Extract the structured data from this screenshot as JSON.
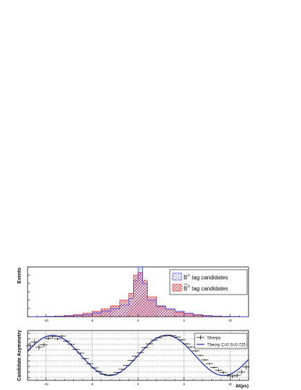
{
  "chart_data": [
    {
      "type": "histogram",
      "ylabel": "Events",
      "xlim": [
        -12,
        12
      ],
      "ylim": [
        0,
        3000
      ],
      "xticks": [
        "-10",
        "-5",
        "0",
        "5",
        "10"
      ],
      "bin_edges": [
        -12,
        -11,
        -10,
        -9,
        -8,
        -7,
        -6,
        -5,
        -4,
        -3,
        -2,
        -1,
        -0.5,
        0,
        0.5,
        1,
        2,
        3,
        4,
        5,
        6,
        7,
        8,
        9,
        10,
        11,
        12
      ],
      "series": [
        {
          "name": "B^{0} tag candidates",
          "color": "#2233ee",
          "hatch": "forward",
          "values": [
            4,
            8,
            14,
            25,
            45,
            80,
            130,
            220,
            340,
            480,
            700,
            1100,
            2200,
            3000,
            2000,
            1000,
            650,
            470,
            330,
            210,
            120,
            70,
            40,
            22,
            12,
            6
          ]
        },
        {
          "name": "B̄^{0} tag candidates",
          "color": "#ee2222",
          "hatch": "cross",
          "values": [
            6,
            12,
            22,
            38,
            70,
            125,
            210,
            330,
            470,
            650,
            1000,
            1400,
            2500,
            2650,
            2200,
            1200,
            620,
            420,
            280,
            175,
            100,
            58,
            32,
            18,
            9,
            5
          ]
        }
      ],
      "legend": [
        {
          "label": "tag candidates",
          "symbol": "B",
          "superscript": "0",
          "bar": false
        },
        {
          "label": "tag candidates",
          "symbol": "B",
          "superscript": "0",
          "bar": true
        }
      ],
      "legend_position": "top-right"
    },
    {
      "type": "line",
      "ylabel": "Candidate Asymmetry",
      "xlabel": "Δt(ps)",
      "xlim": [
        -12,
        12
      ],
      "ylim": [
        -0.9,
        0.9
      ],
      "grid": true,
      "xticks": [
        "-10",
        "-5",
        "0",
        "5",
        "10"
      ],
      "legend": [
        "Sherpa",
        "Theory C=0 S=0.725"
      ],
      "legend_position": "top-right",
      "theory": {
        "S": 0.725,
        "C": 0,
        "delta_m": 0.507
      },
      "series": [
        {
          "name": "Sherpa",
          "style": "markers",
          "x": [
            -11.75,
            -11.25,
            -10.75,
            -10.25,
            -9.75,
            -9.25,
            -8.75,
            -8.25,
            -7.75,
            -7.25,
            -6.75,
            -6.25,
            -5.75,
            -5.25,
            -4.75,
            -4.25,
            -3.75,
            -3.25,
            -2.75,
            -2.25,
            -1.75,
            -1.25,
            -0.75,
            -0.25,
            0.25,
            0.75,
            1.25,
            1.75,
            2.25,
            2.75,
            3.25,
            3.75,
            4.25,
            4.75,
            5.25,
            5.75,
            6.25,
            6.75,
            7.25,
            7.75,
            8.25,
            8.75,
            9.25,
            9.75,
            10.25,
            10.75,
            11.25,
            11.75
          ],
          "y": [
            0.35,
            0.48,
            0.3,
            0.38,
            0.62,
            0.68,
            0.6,
            0.7,
            0.52,
            0.4,
            0.22,
            0.08,
            -0.12,
            -0.3,
            -0.45,
            -0.58,
            -0.68,
            -0.72,
            -0.7,
            -0.62,
            -0.5,
            -0.36,
            -0.18,
            -0.03,
            0.1,
            0.28,
            0.42,
            0.55,
            0.64,
            0.7,
            0.73,
            0.71,
            0.66,
            0.56,
            0.42,
            0.3,
            0.16,
            0.0,
            -0.16,
            -0.3,
            -0.44,
            -0.54,
            -0.62,
            -0.72,
            -0.75,
            -0.72,
            -0.6,
            -0.42
          ],
          "yerr": [
            0.12,
            0.1,
            0.09,
            0.08,
            0.07,
            0.06,
            0.05,
            0.05,
            0.04,
            0.04,
            0.03,
            0.03,
            0.03,
            0.03,
            0.02,
            0.02,
            0.02,
            0.02,
            0.02,
            0.02,
            0.02,
            0.02,
            0.02,
            0.02,
            0.02,
            0.02,
            0.02,
            0.02,
            0.02,
            0.02,
            0.02,
            0.02,
            0.02,
            0.02,
            0.02,
            0.03,
            0.03,
            0.03,
            0.03,
            0.04,
            0.04,
            0.05,
            0.05,
            0.06,
            0.07,
            0.08,
            0.09,
            0.1
          ]
        },
        {
          "name": "Theory C=0 S=0.725",
          "style": "line",
          "color": "#1b2fb8"
        }
      ]
    }
  ]
}
